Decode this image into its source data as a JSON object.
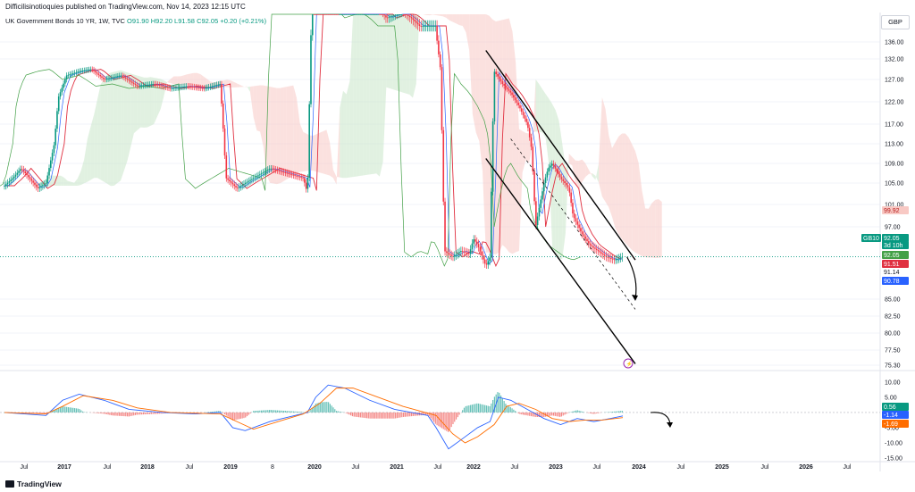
{
  "header": {
    "publish_line": "Difficilisinotioquies published on TradingView.com, Nov 14, 2023 12:15 UTC",
    "symbol": "UK Government Bonds 10 YR, 1W, TVC",
    "open": "O91.90",
    "high": "H92.20",
    "low": "L91.58",
    "close": "C92.05",
    "change": "+0.20 (+0.21%)",
    "currency": "GBP"
  },
  "footer": {
    "brand": "TradingView"
  },
  "colors": {
    "up": "#089981",
    "down": "#f23645",
    "kijun": "#e03040",
    "tenkan": "#2962ff",
    "lagging": "#43a047",
    "cloud_up": "#c8e6c9",
    "cloud_down": "#f8c9c4",
    "macd": "#2962ff",
    "signal": "#ff6d00",
    "trendline": "#000000"
  },
  "chart_data": [
    {
      "type": "candlestick",
      "title": "UK Government Bonds 10 YR, 1W, TVC",
      "currency": "GBP",
      "x_tick_labels": [
        "Jul",
        "2017",
        "Jul",
        "2018",
        "Jul",
        "2019",
        "8",
        "2020",
        "Jul",
        "2021",
        "Jul",
        "2022",
        "Jul",
        "2023",
        "Jul",
        "2024",
        "Jul",
        "2025",
        "Jul",
        "2026",
        "Jul"
      ],
      "y_tick_labels": [
        "136.00",
        "132.00",
        "127.00",
        "122.00",
        "117.00",
        "113.00",
        "109.00",
        "105.00",
        "101.00",
        "97.00",
        "85.00",
        "82.50",
        "80.00",
        "77.50",
        "75.30"
      ],
      "ylim": [
        75.3,
        139
      ],
      "price_labels": [
        {
          "text": "99.92",
          "value": 99.92,
          "color": "#f8c9c4",
          "text_color": "#b71c1c"
        },
        {
          "text": "GB10",
          "value": 92.05,
          "color": "#089981",
          "text_color": "#ffffff"
        },
        {
          "text": "92.05",
          "value": 92.05,
          "color": "#089981",
          "text_color": "#ffffff"
        },
        {
          "text": "3d 10h",
          "value": 92.05,
          "color": "#089981",
          "text_color": "#ffffff"
        },
        {
          "text": "92.05",
          "value": 92.05,
          "color": "#43a047",
          "text_color": "#ffffff"
        },
        {
          "text": "91.51",
          "value": 91.51,
          "color": "#e03040",
          "text_color": "#ffffff"
        },
        {
          "text": "91.14",
          "value": 91.14,
          "color": "#ffffff",
          "text_color": "#131722"
        },
        {
          "text": "90.78",
          "value": 90.78,
          "color": "#2962ff",
          "text_color": "#ffffff"
        }
      ],
      "price_path": [
        [
          2016.4,
          104.5
        ],
        [
          2016.5,
          106
        ],
        [
          2016.6,
          108
        ],
        [
          2016.7,
          106
        ],
        [
          2016.8,
          104
        ],
        [
          2016.9,
          105
        ],
        [
          2017.0,
          113
        ],
        [
          2017.05,
          123
        ],
        [
          2017.15,
          128
        ],
        [
          2017.3,
          129
        ],
        [
          2017.45,
          129.5
        ],
        [
          2017.6,
          127
        ],
        [
          2017.8,
          128
        ],
        [
          2018.0,
          125.5
        ],
        [
          2018.2,
          126
        ],
        [
          2018.4,
          125
        ],
        [
          2018.6,
          125.5
        ],
        [
          2018.8,
          125
        ],
        [
          2019.0,
          126
        ],
        [
          2019.07,
          106
        ],
        [
          2019.2,
          104
        ],
        [
          2019.4,
          106
        ],
        [
          2019.6,
          108
        ],
        [
          2019.8,
          107
        ],
        [
          2020.0,
          106
        ],
        [
          2020.05,
          103
        ],
        [
          2020.1,
          143
        ],
        [
          2020.4,
          141
        ],
        [
          2020.7,
          141
        ],
        [
          2020.9,
          141
        ],
        [
          2021.0,
          139
        ],
        [
          2021.2,
          140
        ],
        [
          2021.4,
          138
        ],
        [
          2021.6,
          138
        ],
        [
          2021.65,
          130
        ],
        [
          2021.7,
          93
        ],
        [
          2021.8,
          92
        ],
        [
          2021.9,
          93
        ],
        [
          2022.0,
          92.5
        ],
        [
          2022.05,
          95
        ],
        [
          2022.1,
          94
        ],
        [
          2022.2,
          90.5
        ],
        [
          2022.25,
          92
        ],
        [
          2022.3,
          129
        ],
        [
          2022.4,
          126
        ],
        [
          2022.5,
          124
        ],
        [
          2022.6,
          121
        ],
        [
          2022.7,
          117
        ],
        [
          2022.75,
          112
        ],
        [
          2022.8,
          97
        ],
        [
          2022.9,
          105
        ],
        [
          2022.95,
          108
        ],
        [
          2023.0,
          109
        ],
        [
          2023.1,
          106
        ],
        [
          2023.2,
          104
        ],
        [
          2023.25,
          99
        ],
        [
          2023.35,
          96
        ],
        [
          2023.45,
          94
        ],
        [
          2023.55,
          93
        ],
        [
          2023.65,
          92
        ],
        [
          2023.75,
          91.5
        ],
        [
          2023.85,
          92.05
        ]
      ],
      "trendlines": [
        {
          "name": "upper channel",
          "from": [
            2022.2,
            134
          ],
          "to": [
            2024.0,
            91.5
          ]
        },
        {
          "name": "lower channel",
          "from": [
            2022.2,
            110
          ],
          "to": [
            2024.0,
            75.5
          ]
        },
        {
          "name": "mid channel",
          "style": "dashed",
          "from": [
            2022.5,
            114
          ],
          "to": [
            2024.0,
            83.5
          ]
        }
      ],
      "projection_arrow": {
        "from": [
          2023.9,
          92
        ],
        "to": [
          2024.0,
          85
        ]
      }
    },
    {
      "type": "line",
      "title": "MACD",
      "y_tick_labels": [
        "10.00",
        "5.00",
        "0.00",
        "-5.00",
        "-10.00",
        "-15.00"
      ],
      "ylim": [
        -15,
        12
      ],
      "value_labels": [
        {
          "text": "0.56",
          "value": 0.56,
          "color": "#089981"
        },
        {
          "text": "-1.14",
          "value": -1.14,
          "color": "#2962ff"
        },
        {
          "text": "-1.69",
          "value": -1.69,
          "color": "#ff6d00"
        }
      ],
      "macd": [
        [
          2016.4,
          0
        ],
        [
          2016.9,
          -1
        ],
        [
          2017.1,
          4
        ],
        [
          2017.3,
          6
        ],
        [
          2017.6,
          4
        ],
        [
          2017.9,
          1
        ],
        [
          2018.3,
          0
        ],
        [
          2018.7,
          -0.5
        ],
        [
          2019.0,
          0
        ],
        [
          2019.15,
          -5
        ],
        [
          2019.3,
          -6
        ],
        [
          2019.6,
          -3
        ],
        [
          2019.9,
          -1
        ],
        [
          2020.05,
          0
        ],
        [
          2020.15,
          5
        ],
        [
          2020.3,
          9
        ],
        [
          2020.5,
          8
        ],
        [
          2020.8,
          4
        ],
        [
          2021.1,
          1
        ],
        [
          2021.5,
          -1
        ],
        [
          2021.6,
          -5
        ],
        [
          2021.75,
          -12
        ],
        [
          2021.9,
          -9
        ],
        [
          2022.1,
          -5
        ],
        [
          2022.25,
          -3
        ],
        [
          2022.35,
          5
        ],
        [
          2022.5,
          4
        ],
        [
          2022.7,
          1
        ],
        [
          2022.9,
          -2
        ],
        [
          2023.1,
          -4
        ],
        [
          2023.3,
          -2
        ],
        [
          2023.5,
          -3
        ],
        [
          2023.7,
          -2
        ],
        [
          2023.85,
          -1.14
        ]
      ],
      "signal": [
        [
          2016.4,
          0
        ],
        [
          2016.9,
          -0.5
        ],
        [
          2017.1,
          2
        ],
        [
          2017.35,
          5.5
        ],
        [
          2017.7,
          4
        ],
        [
          2018.0,
          1.5
        ],
        [
          2018.4,
          0
        ],
        [
          2019.0,
          -0.5
        ],
        [
          2019.2,
          -3
        ],
        [
          2019.4,
          -5.5
        ],
        [
          2019.7,
          -3
        ],
        [
          2020.0,
          -0.5
        ],
        [
          2020.2,
          3
        ],
        [
          2020.4,
          8
        ],
        [
          2020.6,
          8
        ],
        [
          2020.9,
          5
        ],
        [
          2021.2,
          2
        ],
        [
          2021.6,
          -1
        ],
        [
          2021.8,
          -7
        ],
        [
          2021.95,
          -10
        ],
        [
          2022.1,
          -8
        ],
        [
          2022.3,
          -4
        ],
        [
          2022.45,
          2
        ],
        [
          2022.6,
          3
        ],
        [
          2022.8,
          1
        ],
        [
          2023.0,
          -2
        ],
        [
          2023.2,
          -3
        ],
        [
          2023.4,
          -2.5
        ],
        [
          2023.6,
          -2.5
        ],
        [
          2023.85,
          -1.69
        ]
      ],
      "histogram_last": 0.56
    }
  ]
}
